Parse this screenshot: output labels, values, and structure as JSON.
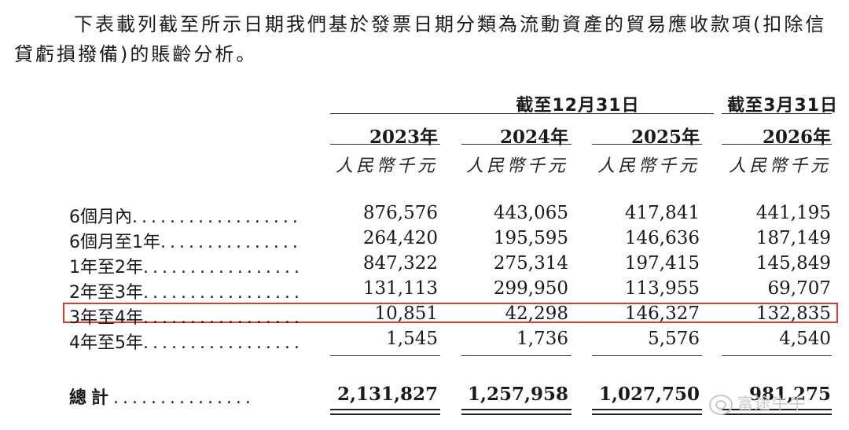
{
  "intro_text": "下表載列截至所示日期我們基於發票日期分類為流動資產的貿易應收款項(扣除信貸虧損撥備)的賬齡分析。",
  "header": {
    "group_dec": "截至12月31日",
    "group_mar": "截至3月31日",
    "years": [
      "2023年",
      "2024年",
      "2025年",
      "2026年"
    ],
    "units": [
      "人民幣千元",
      "人民幣千元",
      "人民幣千元",
      "人民幣千元"
    ]
  },
  "rows": [
    {
      "label": "6個月內",
      "dots": "..................",
      "values": [
        "876,576",
        "443,065",
        "417,841",
        "441,195"
      ]
    },
    {
      "label": "6個月至1年",
      "dots": "...............",
      "values": [
        "264,420",
        "195,595",
        "146,636",
        "187,149"
      ]
    },
    {
      "label": "1年至2年",
      "dots": ".................",
      "values": [
        "847,322",
        "275,314",
        "197,415",
        "145,849"
      ]
    },
    {
      "label": "2年至3年",
      "dots": ".................",
      "values": [
        "131,113",
        "299,950",
        "113,955",
        "69,707"
      ]
    },
    {
      "label": "3年至4年",
      "dots": ".................",
      "values": [
        "10,851",
        "42,298",
        "146,327",
        "132,835"
      ]
    },
    {
      "label": "4年至5年",
      "dots": ".................",
      "values": [
        "1,545",
        "1,736",
        "5,576",
        "4,540"
      ]
    }
  ],
  "total": {
    "label": "總計",
    "dots": "...............",
    "values": [
      "2,131,827",
      "1,257,958",
      "1,027,750",
      "981,275"
    ]
  },
  "highlight_color": "#e23a2a",
  "watermark": "富途牛牛"
}
